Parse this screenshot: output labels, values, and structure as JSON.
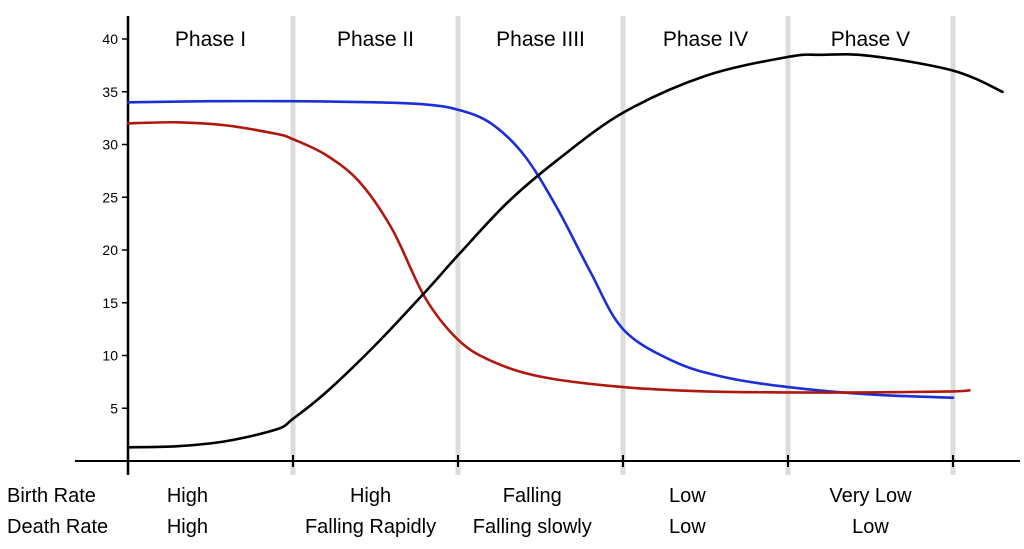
{
  "chart_data": {
    "type": "line",
    "title": "",
    "xlabel": "",
    "ylabel": "",
    "ylim": [
      0,
      40
    ],
    "yticks": [
      5,
      10,
      15,
      20,
      25,
      30,
      35,
      40
    ],
    "xlim": [
      0,
      5.4
    ],
    "grid": "vertical phase dividers",
    "phases": [
      "Phase I",
      "Phase II",
      "Phase IIII",
      "Phase IV",
      "Phase V"
    ],
    "series": [
      {
        "color": "#1c2fd6",
        "x": [
          0,
          0.5,
          1.0,
          1.5,
          1.8,
          2.0,
          2.2,
          2.4,
          2.6,
          2.8,
          3.0,
          3.3,
          3.6,
          4.0,
          4.5,
          5.0
        ],
        "y": [
          34.0,
          34.1,
          34.1,
          34.0,
          33.8,
          33.3,
          32.0,
          29.0,
          24.0,
          18.0,
          12.5,
          9.5,
          8.0,
          7.0,
          6.3,
          6.0
        ]
      },
      {
        "color": "#b0180e",
        "x": [
          0,
          0.3,
          0.6,
          0.9,
          1.0,
          1.2,
          1.4,
          1.6,
          1.8,
          2.0,
          2.2,
          2.5,
          3.0,
          3.5,
          4.0,
          4.5,
          5.0,
          5.1
        ],
        "y": [
          32.0,
          32.1,
          31.8,
          31.0,
          30.5,
          29.0,
          26.5,
          22.0,
          15.5,
          11.5,
          9.5,
          8.0,
          7.0,
          6.6,
          6.5,
          6.5,
          6.6,
          6.7
        ]
      },
      {
        "color": "#000000",
        "x": [
          0,
          0.3,
          0.6,
          0.9,
          1.0,
          1.2,
          1.5,
          1.8,
          2.0,
          2.3,
          2.6,
          3.0,
          3.5,
          4.0,
          4.2,
          4.5,
          5.0,
          5.3
        ],
        "y": [
          1.3,
          1.4,
          1.9,
          3.0,
          4.0,
          6.5,
          11.0,
          16.0,
          19.5,
          24.5,
          28.5,
          33.0,
          36.5,
          38.3,
          38.5,
          38.4,
          37.0,
          35.0
        ]
      }
    ],
    "table": {
      "rows": [
        {
          "label": "Birth Rate",
          "values": [
            "High",
            "High",
            "Falling",
            "Low",
            "Very Low"
          ]
        },
        {
          "label": "Death Rate",
          "values": [
            "High",
            "Falling Rapidly",
            "Falling slowly",
            "Low",
            "Low"
          ]
        }
      ]
    }
  }
}
